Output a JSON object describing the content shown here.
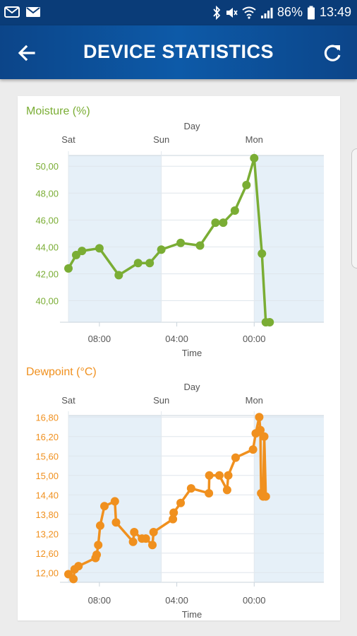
{
  "status_bar": {
    "battery": "86%",
    "time": "13:49",
    "left_icons": [
      "mail-icon",
      "mail-icon"
    ],
    "right_icons": [
      "bluetooth-icon",
      "mute-icon",
      "wifi-icon",
      "signal-icon",
      "battery-icon"
    ]
  },
  "app_bar": {
    "title": "DEVICE STATISTICS",
    "back_icon": "arrow-left-icon",
    "refresh_icon": "refresh-icon"
  },
  "colors": {
    "moisture": "#7aad34",
    "dewpoint": "#f0901e",
    "appbar": "#0c4589",
    "axis_text": "#555555",
    "band": "#e6f0f8"
  },
  "charts": [
    {
      "id": "moisture",
      "title": "Moisture (%)",
      "day_axis_label": "Day",
      "day_labels": [
        "Sat",
        "Sun",
        "Mon"
      ],
      "time_axis_label": "Time",
      "time_labels": [
        "08:00",
        "04:00",
        "00:00"
      ],
      "y_ticks": [
        "50,00",
        "48,00",
        "46,00",
        "44,00",
        "42,00",
        "40,00"
      ]
    },
    {
      "id": "dewpoint",
      "title": "Dewpoint (°C)",
      "day_axis_label": "Day",
      "day_labels": [
        "Sat",
        "Sun",
        "Mon"
      ],
      "time_axis_label": "Time",
      "time_labels": [
        "08:00",
        "04:00",
        "00:00"
      ],
      "y_ticks": [
        "16,80",
        "16,20",
        "15,60",
        "15,00",
        "14,40",
        "13,80",
        "13,20",
        "12,60",
        "12,00"
      ]
    }
  ],
  "chart_data": [
    {
      "type": "line",
      "title": "Moisture (%)",
      "xlabel": "Time",
      "ylabel": "",
      "ylim": [
        38.4,
        50.8
      ],
      "xlim": [
        0,
        66
      ],
      "x_unit": "hours since Sat 00:00",
      "series": [
        {
          "x": [
            0,
            2,
            3.5,
            8,
            13,
            18,
            21,
            24,
            29,
            34,
            38,
            40,
            43,
            46,
            48,
            50,
            51,
            52
          ],
          "y": [
            42.4,
            43.4,
            43.7,
            43.9,
            41.9,
            42.8,
            42.8,
            43.8,
            44.3,
            44.1,
            45.8,
            45.8,
            46.7,
            48.6,
            50.6,
            43.5,
            38.4,
            38.4
          ]
        }
      ]
    },
    {
      "type": "line",
      "title": "Dewpoint (°C)",
      "xlabel": "Time",
      "ylabel": "",
      "ylim": [
        11.7,
        16.85
      ],
      "xlim": [
        0,
        66
      ],
      "x_unit": "hours since Sat 00:00",
      "series": [
        {
          "x": [
            0,
            1.3,
            1.6,
            2.6,
            7,
            7.3,
            7.7,
            8.2,
            9.3,
            12,
            12.3,
            16.7,
            17,
            19,
            20,
            21.7,
            22,
            27,
            27.2,
            29,
            31.7,
            36.3,
            36.4,
            39,
            41,
            41.3,
            43.2,
            47.7,
            48.4,
            49.3,
            49.6,
            49.8,
            50.3,
            50.6,
            51
          ],
          "y": [
            11.95,
            11.8,
            12.1,
            12.2,
            12.45,
            12.55,
            12.85,
            13.45,
            14.05,
            14.2,
            13.55,
            12.95,
            13.25,
            13.05,
            13.05,
            12.85,
            13.25,
            13.65,
            13.85,
            14.15,
            14.6,
            14.45,
            15.0,
            15.0,
            14.55,
            15.0,
            15.55,
            15.8,
            16.3,
            16.8,
            16.4,
            14.45,
            14.35,
            16.2,
            14.35
          ]
        }
      ]
    }
  ]
}
